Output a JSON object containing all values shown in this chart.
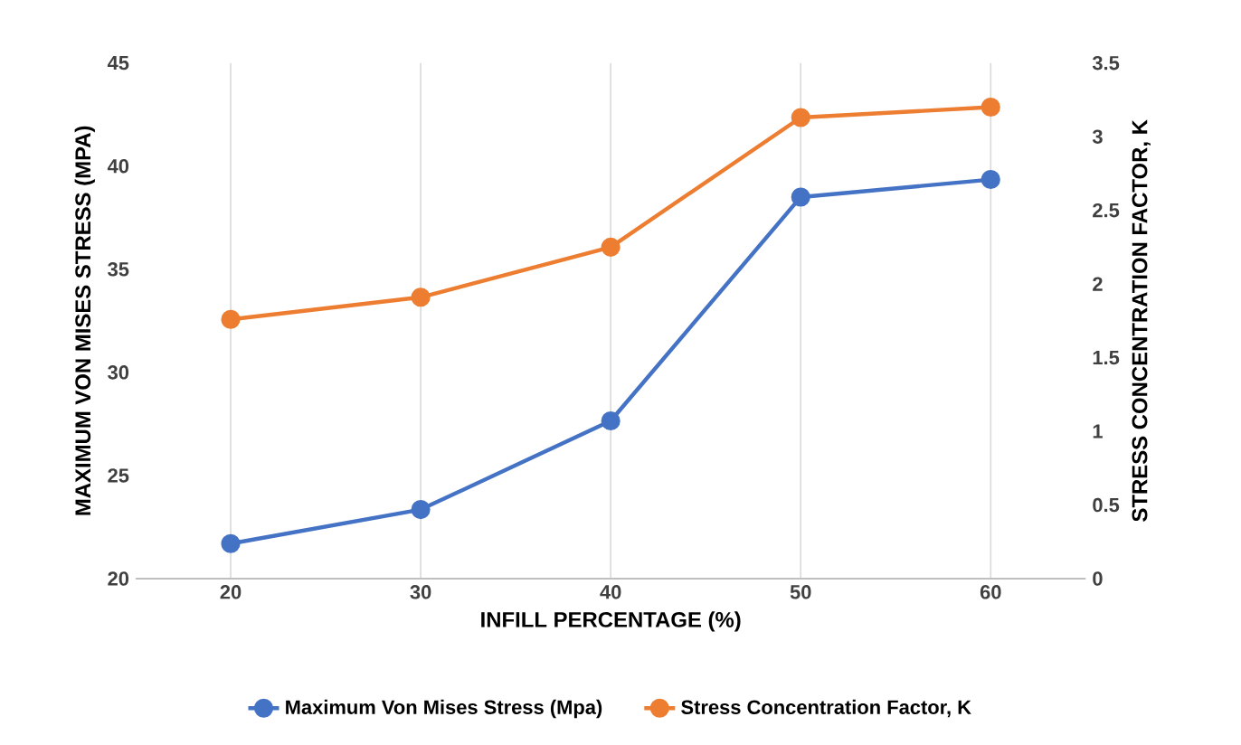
{
  "chart_data": {
    "type": "line",
    "xlabel": "INFILL PERCENTAGE (%)",
    "ylabel": "MAXIMUM VON MISES STRESS (MPA)",
    "y2label": "STRESS CONCENTRATION FACTOR, K",
    "categories": [
      "20",
      "30",
      "40",
      "50",
      "60"
    ],
    "series": [
      {
        "name": "Maximum Von Mises Stress (Mpa)",
        "color": "#4472c4",
        "values": [
          21.7,
          23.35,
          27.65,
          38.5,
          39.35
        ]
      },
      {
        "name": "Stress Concentration Factor, K",
        "color": "#ed7d31",
        "axis": "y2",
        "values": [
          1.76,
          1.91,
          2.25,
          3.13,
          3.2
        ]
      }
    ],
    "ylim": [
      20,
      45
    ],
    "yticks": [
      20,
      25,
      30,
      35,
      40,
      45
    ],
    "y2lim": [
      0,
      3.5
    ],
    "y2ticks": [
      0,
      0.5,
      1,
      1.5,
      2,
      2.5,
      3,
      3.5
    ],
    "grid": "x",
    "legend": "bottom",
    "marker": "circle",
    "line_style": "solid"
  }
}
